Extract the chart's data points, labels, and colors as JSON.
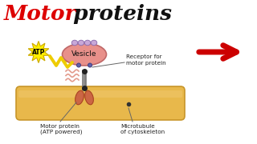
{
  "title_motor": "Motor",
  "title_proteins": " proteins",
  "title_color_motor": "#dd0000",
  "title_color_proteins": "#111111",
  "bg_color": "#ffffff",
  "vesicle_color": "#e8908a",
  "vesicle_edge_color": "#c06868",
  "vesicle_label": "Vesicle",
  "microtubule_color": "#e8b84b",
  "microtubule_edge_color": "#c8962a",
  "microtubule_label": "Microtubule\nof cytoskeleton",
  "motor_protein_label": "Motor protein\n(ATP powered)",
  "receptor_label": "Receptor for\nmotor protein",
  "atp_label": "ATP",
  "arrow_color": "#cc0000",
  "zigzag_color": "#eecc00",
  "star_color": "#ffee00",
  "star_edge_color": "#ccaa00",
  "connector_color": "#cc6644",
  "bump_color": "#c8a8d8",
  "bump_edge_color": "#9070b0",
  "receptor_dot_color": "#6060aa",
  "label_color": "#222222",
  "line_color": "#666666"
}
